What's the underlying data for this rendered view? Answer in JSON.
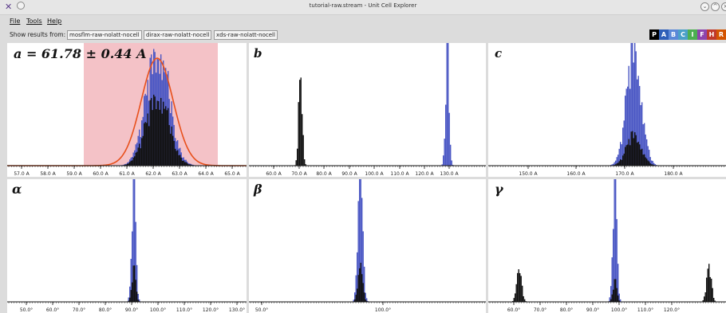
{
  "window": {
    "title": "tutorial-raw.stream - Unit Cell Explorer"
  },
  "menu": {
    "file": "File",
    "tools": "Tools",
    "help": "Help"
  },
  "results": {
    "label": "Show results from:",
    "sources": [
      "mosflm-raw-nolatt-nocell",
      "dirax-raw-nolatt-nocell",
      "xds-raw-nolatt-nocell"
    ]
  },
  "selectors": [
    {
      "letter": "P",
      "color": "#000000"
    },
    {
      "letter": "A",
      "color": "#2f5fb8"
    },
    {
      "letter": "B",
      "color": "#5b88d8"
    },
    {
      "letter": "C",
      "color": "#4aa0c8"
    },
    {
      "letter": "I",
      "color": "#4caf50"
    },
    {
      "letter": "F",
      "color": "#8e44ad"
    },
    {
      "letter": "H",
      "color": "#c0392b"
    },
    {
      "letter": "R",
      "color": "#d35400"
    }
  ],
  "colors": {
    "indexed_a": "#4b57c4",
    "indexed_b": "#111111",
    "selection": "#f4c2c7",
    "fit": "#e8501c"
  },
  "panels": {
    "a": {
      "label": "a = 61.78 ± 0.44 A",
      "ticks": [
        "57.0 A",
        "58.0 A",
        "59.0 A",
        "60.0 A",
        "61.0 A",
        "62.0 A",
        "63.0 A",
        "64.0 A",
        "65.0 A"
      ]
    },
    "b": {
      "label": "b",
      "ticks": [
        "60.0 A",
        "70.0 A",
        "80.0 A",
        "90.0 A",
        "100.0 A",
        "110.0 A",
        "120.0 A",
        "130.0 A"
      ]
    },
    "c": {
      "label": "c",
      "ticks": [
        "150.0 A",
        "160.0 A",
        "170.0 A",
        "180.0 A"
      ]
    },
    "alpha": {
      "label": "α",
      "ticks": [
        "50.0°",
        "60.0°",
        "70.0°",
        "80.0°",
        "90.0°",
        "100.0°",
        "110.0°",
        "120.0°",
        "130.0°"
      ]
    },
    "beta": {
      "label": "β",
      "ticks": [
        "50.0°",
        "100.0°"
      ]
    },
    "gamma": {
      "label": "γ",
      "ticks": [
        "60.0°",
        "70.0°",
        "80.0°",
        "90.0°",
        "100.0°",
        "110.0°",
        "120.0°"
      ]
    }
  }
}
